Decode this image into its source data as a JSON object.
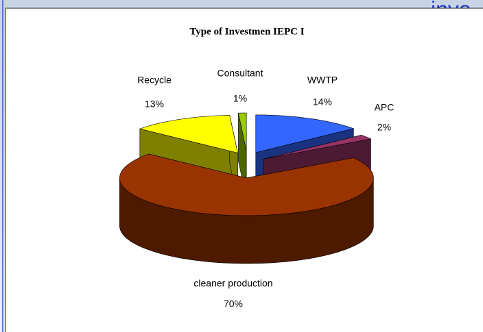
{
  "header_fragment": "inve",
  "chart_data": {
    "type": "pie3d",
    "title": "Type of Investmen IEPC I",
    "categories": [
      "WWTP",
      "APC",
      "cleaner production",
      "Recycle",
      "Consultant"
    ],
    "values": [
      14,
      2,
      70,
      13,
      1
    ],
    "value_labels": [
      "14%",
      "2%",
      "70%",
      "13%",
      "1%"
    ],
    "colors": [
      "#3366ff",
      "#993366",
      "#993300",
      "#ffff00",
      "#99cc00"
    ]
  }
}
